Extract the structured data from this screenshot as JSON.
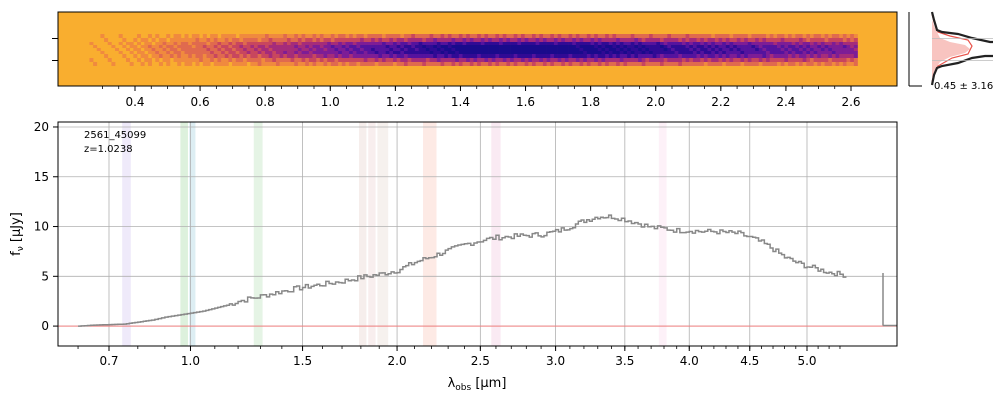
{
  "image": {
    "colormap": "plasma",
    "background_color": "#f9ae2f",
    "trace_peak_color": "#1a0a8c",
    "top_axis_ticks": [
      "0.4",
      "0.6",
      "0.8",
      "1.0",
      "1.2",
      "1.4",
      "1.6",
      "1.8",
      "2.0",
      "2.2",
      "2.4",
      "2.6"
    ],
    "top_axis_values": [
      0.4,
      0.6,
      0.8,
      1.0,
      1.2,
      1.4,
      1.6,
      1.8,
      2.0,
      2.2,
      2.4,
      2.6
    ]
  },
  "profile": {
    "label": "0.45 ± 3.16",
    "line_color": "#222222",
    "model_color": "#e8524a",
    "fill_color": "#f8c4c0"
  },
  "chart_data": {
    "type": "line",
    "object_id": "2561_45099",
    "redshift_label": "z=1.0238",
    "xlabel_prefix": "λ",
    "xlabel_sub": "obs",
    "xlabel_suffix": " [μm]",
    "ylabel_prefix": "f",
    "ylabel_sub": "ν",
    "ylabel_suffix": " [μJy]",
    "x_ticks": [
      "0.7",
      "1.0",
      "1.5",
      "2.0",
      "2.5",
      "3.0",
      "3.5",
      "4.0",
      "4.5",
      "5.0"
    ],
    "x_tick_values": [
      0.7,
      1.0,
      1.5,
      2.0,
      2.5,
      3.0,
      3.5,
      4.0,
      4.5,
      5.0
    ],
    "y_ticks": [
      "0",
      "5",
      "10",
      "15",
      "20"
    ],
    "y_tick_values": [
      0,
      5,
      10,
      15,
      20
    ],
    "ylim": [
      -2,
      20.5
    ],
    "grid": true,
    "series_color": "#888888",
    "zero_line_color": "#f08080",
    "x": [
      0.6,
      0.65,
      0.7,
      0.75,
      0.8,
      0.85,
      0.9,
      0.95,
      1.0,
      1.05,
      1.1,
      1.15,
      1.2,
      1.3,
      1.4,
      1.5,
      1.6,
      1.7,
      1.8,
      1.9,
      2.0,
      2.1,
      2.2,
      2.3,
      2.4,
      2.5,
      2.6,
      2.7,
      2.8,
      2.9,
      3.0,
      3.1,
      3.2,
      3.3,
      3.4,
      3.5,
      3.6,
      3.7,
      3.8,
      3.9,
      4.0,
      4.1,
      4.2,
      4.3,
      4.4,
      4.5,
      4.6,
      4.7,
      4.8,
      4.9,
      5.0,
      5.1,
      5.2,
      5.3,
      5.36
    ],
    "y": [
      0.0,
      0.1,
      0.15,
      0.2,
      0.4,
      0.6,
      0.9,
      1.1,
      1.3,
      1.5,
      1.8,
      2.1,
      2.5,
      3.0,
      3.5,
      3.9,
      4.2,
      4.5,
      4.9,
      5.2,
      5.6,
      6.4,
      7.0,
      7.6,
      8.2,
      8.6,
      8.9,
      9.0,
      9.1,
      9.2,
      9.5,
      10.0,
      10.6,
      11.0,
      11.0,
      10.7,
      10.3,
      9.9,
      9.8,
      9.6,
      9.6,
      9.5,
      9.5,
      9.4,
      9.3,
      8.9,
      8.4,
      7.7,
      6.9,
      6.4,
      6.0,
      5.7,
      5.4,
      5.2,
      5.1
    ],
    "bands": [
      {
        "lo": 0.745,
        "hi": 0.775,
        "color": "#c9b8f0"
      },
      {
        "lo": 0.96,
        "hi": 0.99,
        "color": "#8fd08f"
      },
      {
        "lo": 0.995,
        "hi": 1.02,
        "color": "#8fc8d8"
      },
      {
        "lo": 1.27,
        "hi": 1.31,
        "color": "#a8dca8"
      },
      {
        "lo": 1.79,
        "hi": 1.83,
        "color": "#e0c8c0"
      },
      {
        "lo": 1.84,
        "hi": 1.88,
        "color": "#e8c8c8"
      },
      {
        "lo": 1.89,
        "hi": 1.95,
        "color": "#e0d0c8"
      },
      {
        "lo": 2.15,
        "hi": 2.23,
        "color": "#f8b8a8"
      },
      {
        "lo": 2.57,
        "hi": 2.63,
        "color": "#f0b8d8"
      },
      {
        "lo": 3.76,
        "hi": 3.82,
        "color": "#f8d0e8"
      }
    ]
  }
}
